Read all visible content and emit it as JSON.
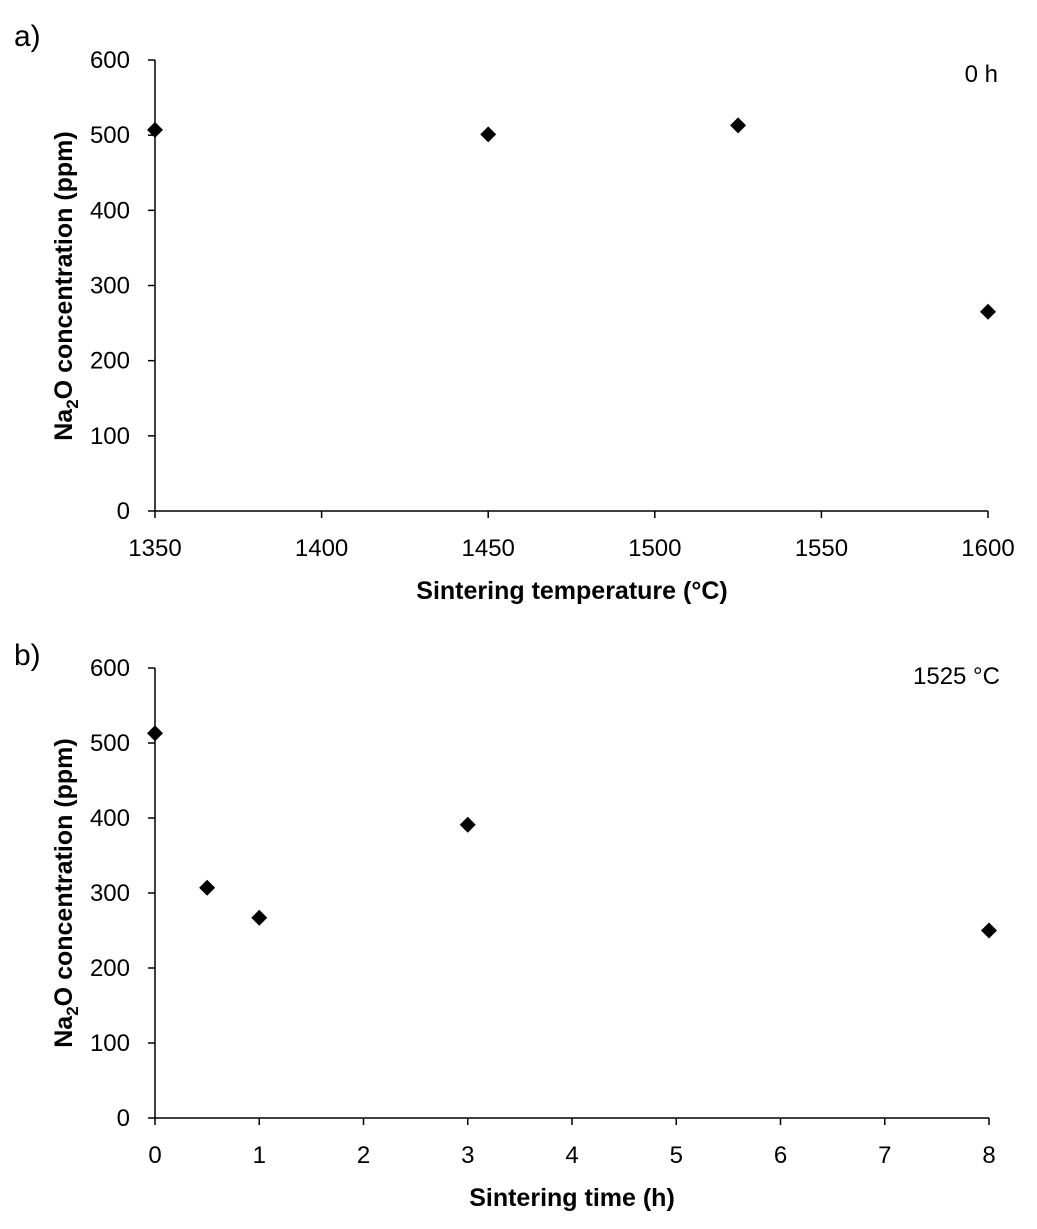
{
  "chart_data": [
    {
      "type": "scatter",
      "panel_label": "a)",
      "annotation": "0 h",
      "xlabel": "Sintering temperature (°C)",
      "ylabel_parts": [
        "Na",
        "2",
        "O concentration (ppm)"
      ],
      "xlim": [
        1350,
        1600
      ],
      "ylim": [
        0,
        600
      ],
      "xticks": [
        1350,
        1400,
        1450,
        1500,
        1550,
        1600
      ],
      "yticks": [
        0,
        100,
        200,
        300,
        400,
        500,
        600
      ],
      "grid": false,
      "marker": "diamond",
      "color": "#000000",
      "points": [
        {
          "x": 1350,
          "y": 507
        },
        {
          "x": 1450,
          "y": 501
        },
        {
          "x": 1525,
          "y": 513
        },
        {
          "x": 1600,
          "y": 265
        }
      ]
    },
    {
      "type": "scatter",
      "panel_label": "b)",
      "annotation": "1525 °C",
      "xlabel": "Sintering time (h)",
      "ylabel_parts": [
        "Na",
        "2",
        "O concentration (ppm)"
      ],
      "xlim": [
        0,
        8
      ],
      "ylim": [
        0,
        600
      ],
      "xticks": [
        0,
        1,
        2,
        3,
        4,
        5,
        6,
        7,
        8
      ],
      "yticks": [
        0,
        100,
        200,
        300,
        400,
        500,
        600
      ],
      "grid": false,
      "marker": "diamond",
      "color": "#000000",
      "points": [
        {
          "x": 0,
          "y": 513
        },
        {
          "x": 0.5,
          "y": 307
        },
        {
          "x": 1,
          "y": 267
        },
        {
          "x": 3,
          "y": 391
        },
        {
          "x": 8,
          "y": 250
        }
      ]
    }
  ]
}
